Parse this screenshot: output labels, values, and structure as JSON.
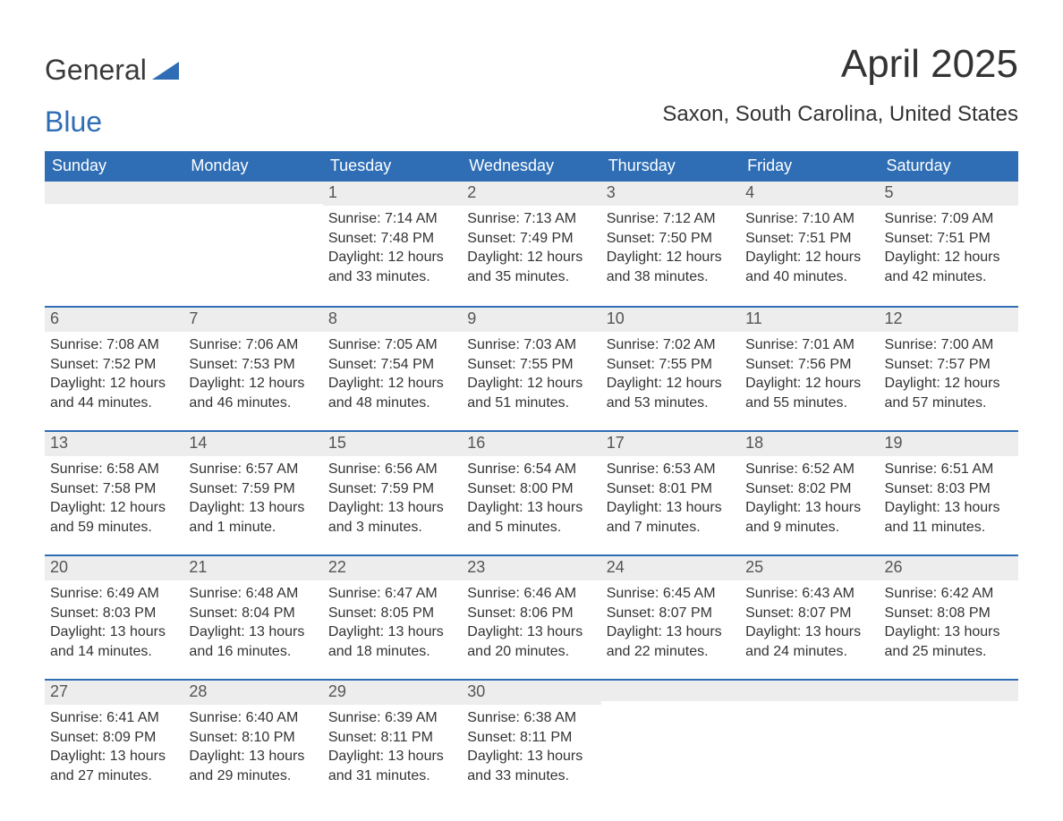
{
  "logo": {
    "text_part1": "General",
    "text_part2": "Blue",
    "color_primary": "#2f6eb5",
    "color_text": "#3a3a3a"
  },
  "title": "April 2025",
  "location": "Saxon, South Carolina, United States",
  "styling": {
    "header_bg": "#2f6eb5",
    "header_text": "#ffffff",
    "daynum_bg": "#ededed",
    "row_divider": "#2f6eb5",
    "body_text": "#333333",
    "page_bg": "#ffffff",
    "title_fontsize": 44,
    "location_fontsize": 24,
    "header_fontsize": 18,
    "daynum_fontsize": 18,
    "body_fontsize": 16
  },
  "columns": [
    "Sunday",
    "Monday",
    "Tuesday",
    "Wednesday",
    "Thursday",
    "Friday",
    "Saturday"
  ],
  "weeks": [
    [
      {
        "day": "",
        "sunrise": "",
        "sunset": "",
        "daylight": ""
      },
      {
        "day": "",
        "sunrise": "",
        "sunset": "",
        "daylight": ""
      },
      {
        "day": "1",
        "sunrise": "Sunrise: 7:14 AM",
        "sunset": "Sunset: 7:48 PM",
        "daylight": "Daylight: 12 hours and 33 minutes."
      },
      {
        "day": "2",
        "sunrise": "Sunrise: 7:13 AM",
        "sunset": "Sunset: 7:49 PM",
        "daylight": "Daylight: 12 hours and 35 minutes."
      },
      {
        "day": "3",
        "sunrise": "Sunrise: 7:12 AM",
        "sunset": "Sunset: 7:50 PM",
        "daylight": "Daylight: 12 hours and 38 minutes."
      },
      {
        "day": "4",
        "sunrise": "Sunrise: 7:10 AM",
        "sunset": "Sunset: 7:51 PM",
        "daylight": "Daylight: 12 hours and 40 minutes."
      },
      {
        "day": "5",
        "sunrise": "Sunrise: 7:09 AM",
        "sunset": "Sunset: 7:51 PM",
        "daylight": "Daylight: 12 hours and 42 minutes."
      }
    ],
    [
      {
        "day": "6",
        "sunrise": "Sunrise: 7:08 AM",
        "sunset": "Sunset: 7:52 PM",
        "daylight": "Daylight: 12 hours and 44 minutes."
      },
      {
        "day": "7",
        "sunrise": "Sunrise: 7:06 AM",
        "sunset": "Sunset: 7:53 PM",
        "daylight": "Daylight: 12 hours and 46 minutes."
      },
      {
        "day": "8",
        "sunrise": "Sunrise: 7:05 AM",
        "sunset": "Sunset: 7:54 PM",
        "daylight": "Daylight: 12 hours and 48 minutes."
      },
      {
        "day": "9",
        "sunrise": "Sunrise: 7:03 AM",
        "sunset": "Sunset: 7:55 PM",
        "daylight": "Daylight: 12 hours and 51 minutes."
      },
      {
        "day": "10",
        "sunrise": "Sunrise: 7:02 AM",
        "sunset": "Sunset: 7:55 PM",
        "daylight": "Daylight: 12 hours and 53 minutes."
      },
      {
        "day": "11",
        "sunrise": "Sunrise: 7:01 AM",
        "sunset": "Sunset: 7:56 PM",
        "daylight": "Daylight: 12 hours and 55 minutes."
      },
      {
        "day": "12",
        "sunrise": "Sunrise: 7:00 AM",
        "sunset": "Sunset: 7:57 PM",
        "daylight": "Daylight: 12 hours and 57 minutes."
      }
    ],
    [
      {
        "day": "13",
        "sunrise": "Sunrise: 6:58 AM",
        "sunset": "Sunset: 7:58 PM",
        "daylight": "Daylight: 12 hours and 59 minutes."
      },
      {
        "day": "14",
        "sunrise": "Sunrise: 6:57 AM",
        "sunset": "Sunset: 7:59 PM",
        "daylight": "Daylight: 13 hours and 1 minute."
      },
      {
        "day": "15",
        "sunrise": "Sunrise: 6:56 AM",
        "sunset": "Sunset: 7:59 PM",
        "daylight": "Daylight: 13 hours and 3 minutes."
      },
      {
        "day": "16",
        "sunrise": "Sunrise: 6:54 AM",
        "sunset": "Sunset: 8:00 PM",
        "daylight": "Daylight: 13 hours and 5 minutes."
      },
      {
        "day": "17",
        "sunrise": "Sunrise: 6:53 AM",
        "sunset": "Sunset: 8:01 PM",
        "daylight": "Daylight: 13 hours and 7 minutes."
      },
      {
        "day": "18",
        "sunrise": "Sunrise: 6:52 AM",
        "sunset": "Sunset: 8:02 PM",
        "daylight": "Daylight: 13 hours and 9 minutes."
      },
      {
        "day": "19",
        "sunrise": "Sunrise: 6:51 AM",
        "sunset": "Sunset: 8:03 PM",
        "daylight": "Daylight: 13 hours and 11 minutes."
      }
    ],
    [
      {
        "day": "20",
        "sunrise": "Sunrise: 6:49 AM",
        "sunset": "Sunset: 8:03 PM",
        "daylight": "Daylight: 13 hours and 14 minutes."
      },
      {
        "day": "21",
        "sunrise": "Sunrise: 6:48 AM",
        "sunset": "Sunset: 8:04 PM",
        "daylight": "Daylight: 13 hours and 16 minutes."
      },
      {
        "day": "22",
        "sunrise": "Sunrise: 6:47 AM",
        "sunset": "Sunset: 8:05 PM",
        "daylight": "Daylight: 13 hours and 18 minutes."
      },
      {
        "day": "23",
        "sunrise": "Sunrise: 6:46 AM",
        "sunset": "Sunset: 8:06 PM",
        "daylight": "Daylight: 13 hours and 20 minutes."
      },
      {
        "day": "24",
        "sunrise": "Sunrise: 6:45 AM",
        "sunset": "Sunset: 8:07 PM",
        "daylight": "Daylight: 13 hours and 22 minutes."
      },
      {
        "day": "25",
        "sunrise": "Sunrise: 6:43 AM",
        "sunset": "Sunset: 8:07 PM",
        "daylight": "Daylight: 13 hours and 24 minutes."
      },
      {
        "day": "26",
        "sunrise": "Sunrise: 6:42 AM",
        "sunset": "Sunset: 8:08 PM",
        "daylight": "Daylight: 13 hours and 25 minutes."
      }
    ],
    [
      {
        "day": "27",
        "sunrise": "Sunrise: 6:41 AM",
        "sunset": "Sunset: 8:09 PM",
        "daylight": "Daylight: 13 hours and 27 minutes."
      },
      {
        "day": "28",
        "sunrise": "Sunrise: 6:40 AM",
        "sunset": "Sunset: 8:10 PM",
        "daylight": "Daylight: 13 hours and 29 minutes."
      },
      {
        "day": "29",
        "sunrise": "Sunrise: 6:39 AM",
        "sunset": "Sunset: 8:11 PM",
        "daylight": "Daylight: 13 hours and 31 minutes."
      },
      {
        "day": "30",
        "sunrise": "Sunrise: 6:38 AM",
        "sunset": "Sunset: 8:11 PM",
        "daylight": "Daylight: 13 hours and 33 minutes."
      },
      {
        "day": "",
        "sunrise": "",
        "sunset": "",
        "daylight": ""
      },
      {
        "day": "",
        "sunrise": "",
        "sunset": "",
        "daylight": ""
      },
      {
        "day": "",
        "sunrise": "",
        "sunset": "",
        "daylight": ""
      }
    ]
  ]
}
